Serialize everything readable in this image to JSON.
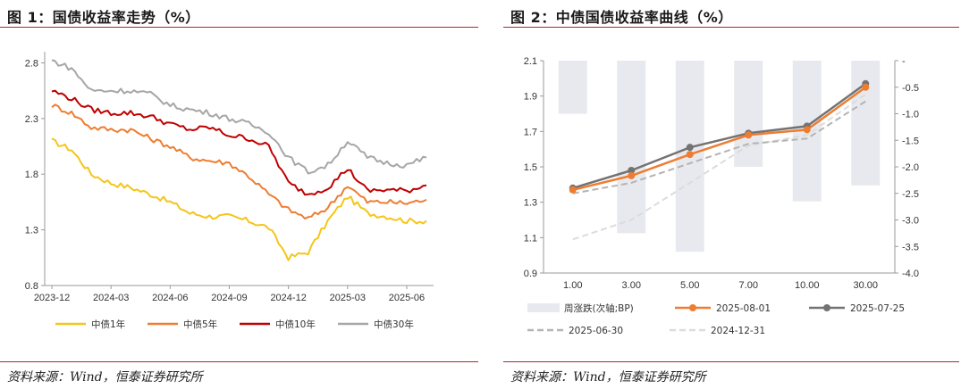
{
  "left": {
    "title": "图 1：国债收益率走势（%）",
    "source": "资料来源：Wind，恒泰证券研究所"
  },
  "right": {
    "title": "图 2：中债国债收益率曲线（%）",
    "source": "资料来源：Wind，恒泰证券研究所"
  },
  "chart_data": [
    {
      "type": "line",
      "title": "",
      "xlabel": "",
      "ylabel": "",
      "ylim": [
        0.8,
        2.9
      ],
      "yticks": [
        "0.8",
        "1.3",
        "1.8",
        "2.3",
        "2.8"
      ],
      "xticks": [
        "2023-12",
        "2024-03",
        "2024-06",
        "2024-09",
        "2024-12",
        "2025-03",
        "2025-06"
      ],
      "grid": false,
      "legend": "bottom",
      "x_dates": [
        "2023-12",
        "2024-01",
        "2024-02",
        "2024-03",
        "2024-04",
        "2024-05",
        "2024-06",
        "2024-07",
        "2024-08",
        "2024-09",
        "2024-10",
        "2024-11",
        "2024-12",
        "2025-01",
        "2025-02",
        "2025-03",
        "2025-04",
        "2025-05",
        "2025-06",
        "2025-07"
      ],
      "series": [
        {
          "name": "中债1年",
          "color": "#f5c518",
          "values": [
            2.1,
            2.02,
            1.8,
            1.72,
            1.68,
            1.62,
            1.55,
            1.45,
            1.42,
            1.42,
            1.38,
            1.32,
            1.05,
            1.1,
            1.38,
            1.6,
            1.45,
            1.42,
            1.38,
            1.38
          ]
        },
        {
          "name": "中债5年",
          "color": "#ed7d31",
          "values": [
            2.42,
            2.35,
            2.22,
            2.2,
            2.2,
            2.12,
            2.05,
            1.95,
            1.92,
            1.9,
            1.78,
            1.62,
            1.48,
            1.4,
            1.5,
            1.7,
            1.55,
            1.55,
            1.54,
            1.57
          ]
        },
        {
          "name": "中债10年",
          "color": "#c00000",
          "values": [
            2.55,
            2.48,
            2.38,
            2.35,
            2.35,
            2.32,
            2.25,
            2.2,
            2.22,
            2.15,
            2.12,
            2.05,
            1.72,
            1.62,
            1.68,
            1.85,
            1.65,
            1.66,
            1.65,
            1.7
          ]
        },
        {
          "name": "中债30年",
          "color": "#a6a6a6",
          "values": [
            2.82,
            2.75,
            2.55,
            2.55,
            2.55,
            2.52,
            2.42,
            2.38,
            2.35,
            2.3,
            2.25,
            2.18,
            1.95,
            1.82,
            1.88,
            2.1,
            1.95,
            1.9,
            1.88,
            1.95
          ]
        }
      ]
    },
    {
      "type": "bar+line",
      "title": "",
      "xlabel": "",
      "ylabel": "",
      "categories": [
        "1.00",
        "3.00",
        "5.00",
        "7.00",
        "10.00",
        "30.00"
      ],
      "ylim": [
        0.9,
        2.1
      ],
      "yticks": [
        "0.9",
        "1.1",
        "1.3",
        "1.5",
        "1.7",
        "1.9",
        "2.1"
      ],
      "y2lim": [
        -4.0,
        0.0
      ],
      "y2ticks": [
        "-4.0",
        "-3.5",
        "-3.0",
        "-2.5",
        "-2.0",
        "-1.5",
        "-1.0",
        "-0.5",
        "-"
      ],
      "grid": false,
      "legend": "bottom",
      "bars": {
        "name": "周涨跌(次轴;BP)",
        "color": "#e8e9ee",
        "values": [
          -1.0,
          -3.25,
          -3.6,
          -2.0,
          -2.65,
          -2.35
        ]
      },
      "series": [
        {
          "name": "2025-08-01",
          "color": "#ed7d31",
          "style": "solid-marker",
          "values": [
            1.37,
            1.45,
            1.57,
            1.68,
            1.71,
            1.95
          ]
        },
        {
          "name": "2025-07-25",
          "color": "#737373",
          "style": "solid-marker",
          "values": [
            1.38,
            1.48,
            1.61,
            1.69,
            1.73,
            1.97
          ]
        },
        {
          "name": "2025-06-30",
          "color": "#b4b4b4",
          "style": "dashed",
          "values": [
            1.35,
            1.41,
            1.52,
            1.63,
            1.66,
            1.87
          ]
        },
        {
          "name": "2024-12-31",
          "color": "#dcdcdc",
          "style": "dashed",
          "values": [
            1.09,
            1.2,
            1.41,
            1.62,
            1.68,
            1.91
          ]
        }
      ]
    }
  ]
}
